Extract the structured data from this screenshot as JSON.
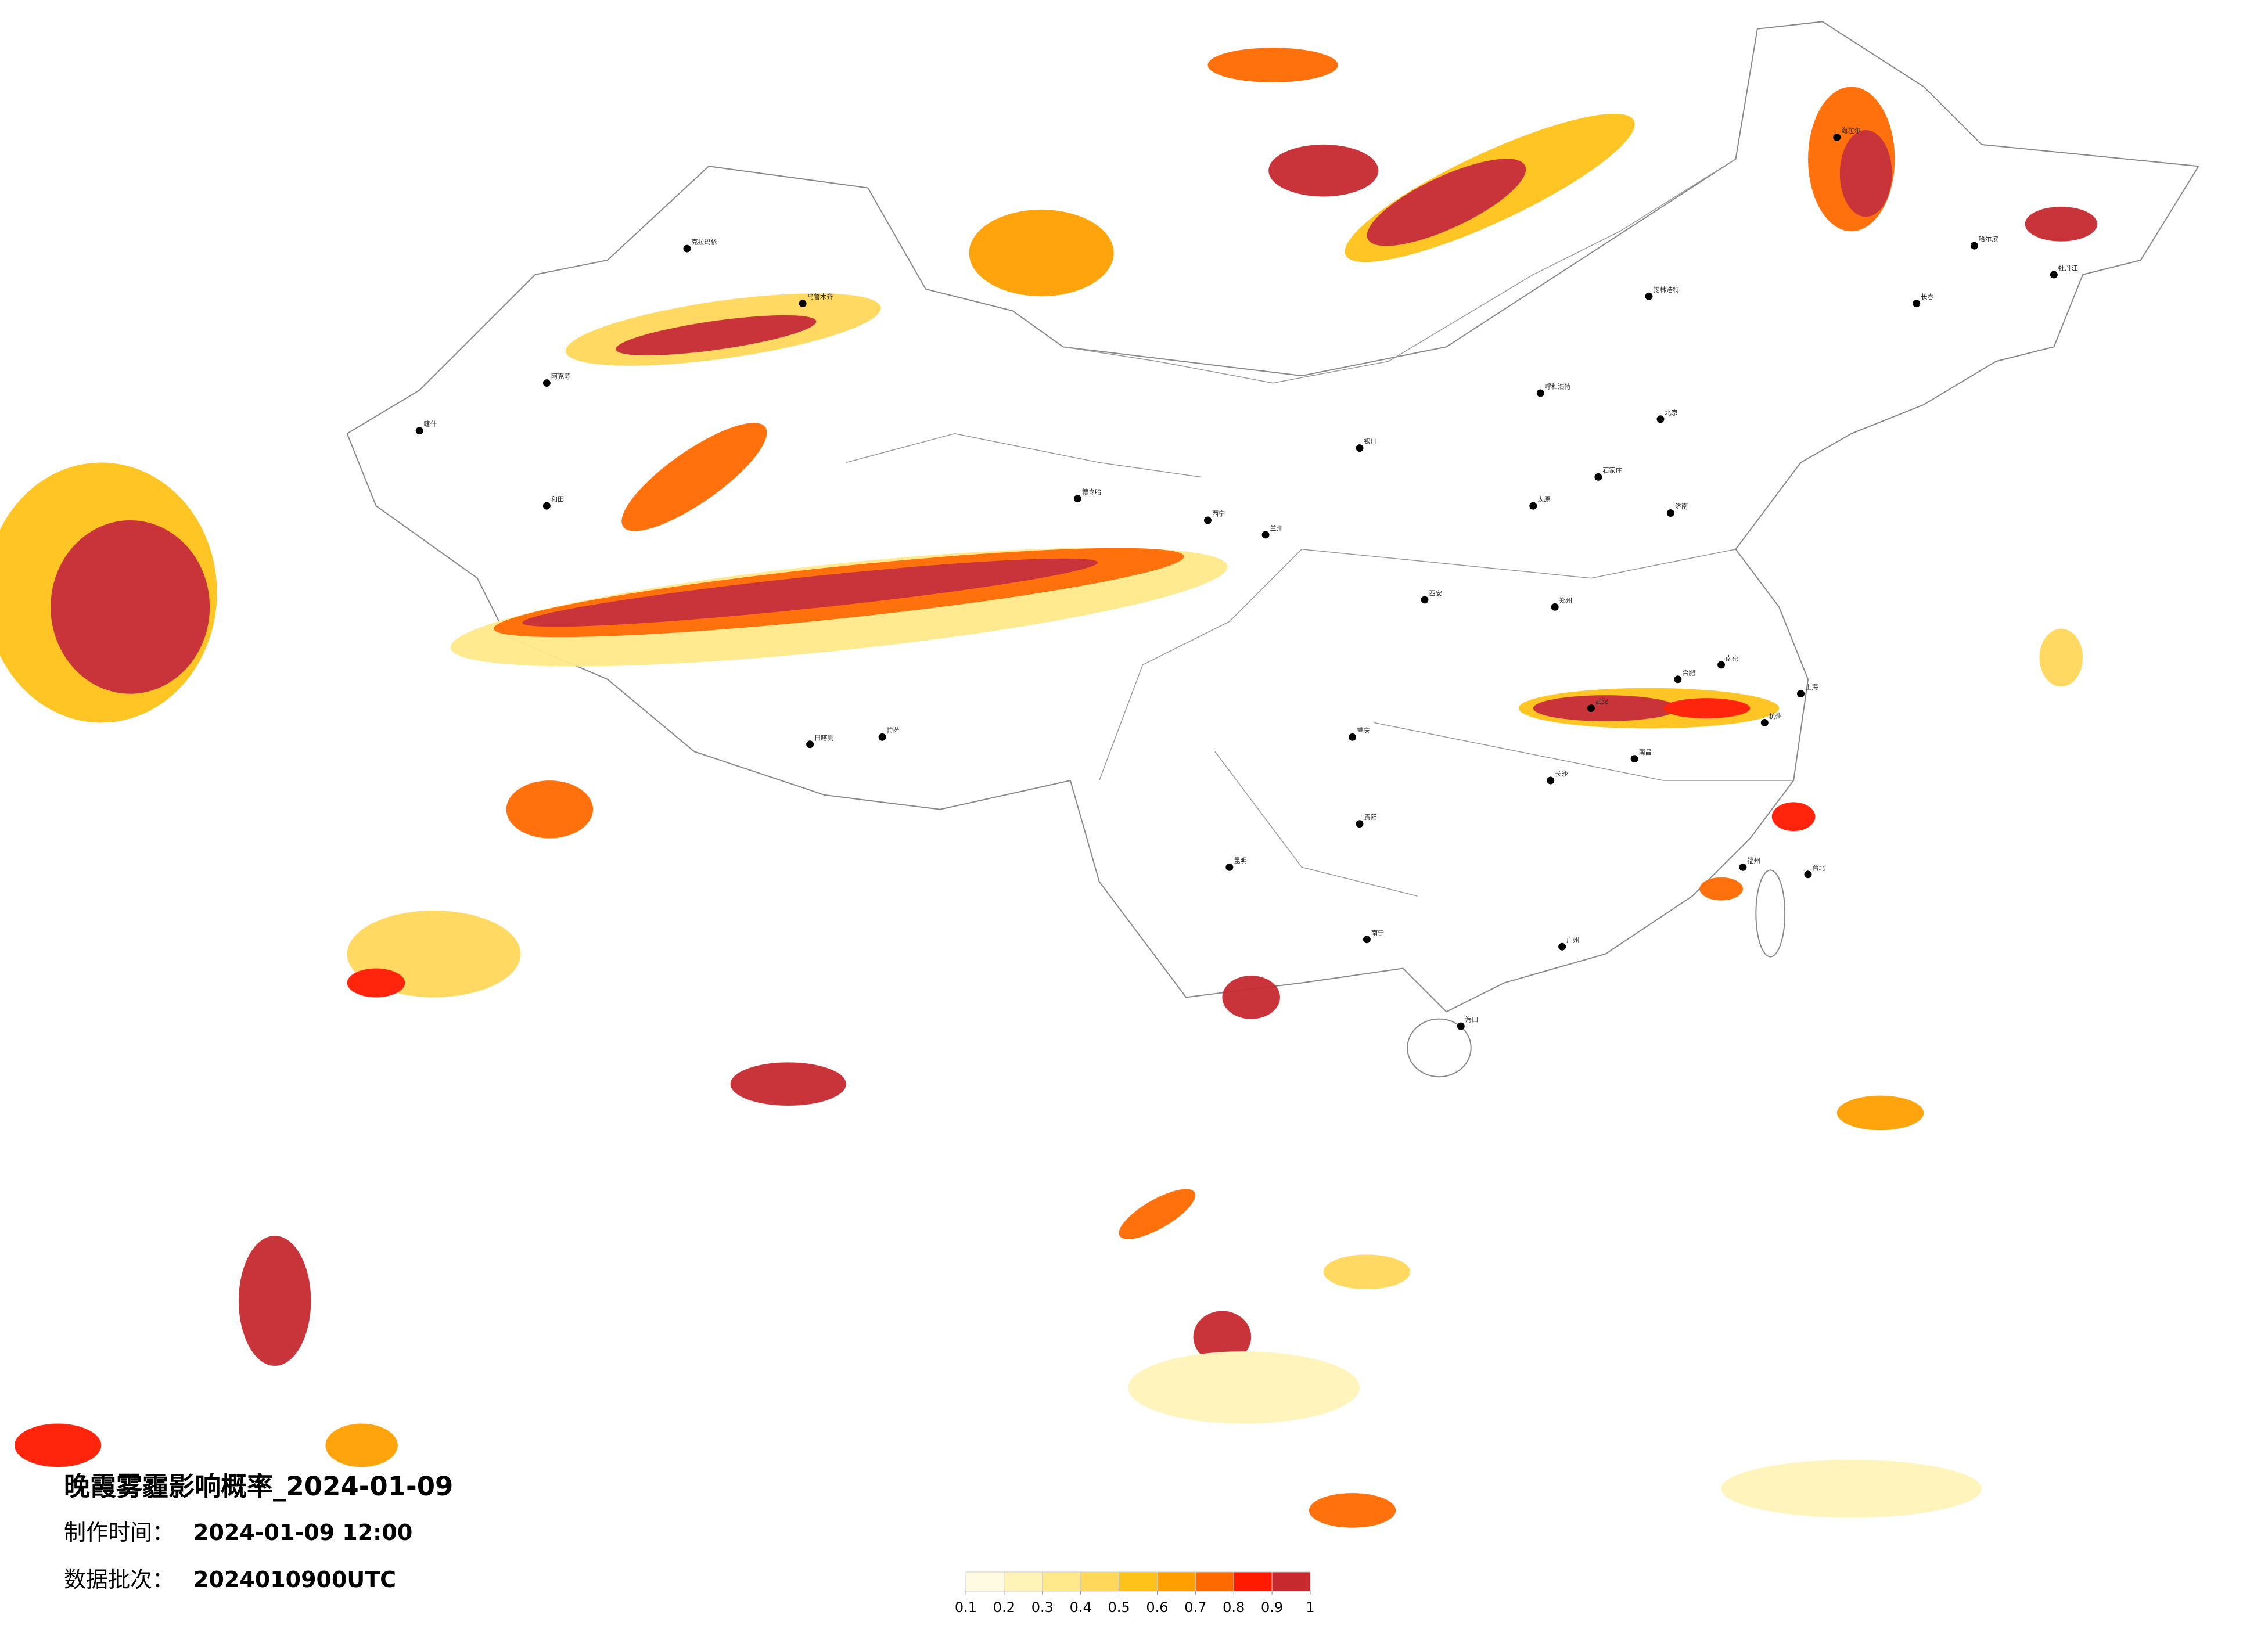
{
  "title": "晚霞雾霾影响概率_2024-01-09",
  "make_time_label": "制作时间：",
  "make_time": "2024-01-09 12:00",
  "batch_label": "数据批次：",
  "batch": "2024010900UTC",
  "colorbar": {
    "ticks": [
      0.1,
      0.2,
      0.3,
      0.4,
      0.5,
      0.6,
      0.7,
      0.8,
      0.9,
      1
    ],
    "colors": [
      "#fffbe3",
      "#fff4b8",
      "#ffe98a",
      "#ffd75a",
      "#ffc21a",
      "#ffa000",
      "#ff6a00",
      "#ff1a00",
      "#c62a2f"
    ]
  },
  "cities": [
    "乌鲁木齐",
    "克拉玛依",
    "喀什",
    "和田",
    "阿克苏",
    "拉萨",
    "日喀则",
    "德令哈",
    "西宁",
    "兰州",
    "银川",
    "呼和浩特",
    "北京",
    "石家庄",
    "太原",
    "济南",
    "郑州",
    "西安",
    "武汉",
    "南京",
    "上海",
    "杭州",
    "合肥",
    "南昌",
    "长沙",
    "福州",
    "台北",
    "广州",
    "南宁",
    "海口",
    "贵阳",
    "昆明",
    "重庆",
    "长春",
    "哈尔滨",
    "锡林浩特",
    "牡丹江",
    "海拉尔"
  ]
}
